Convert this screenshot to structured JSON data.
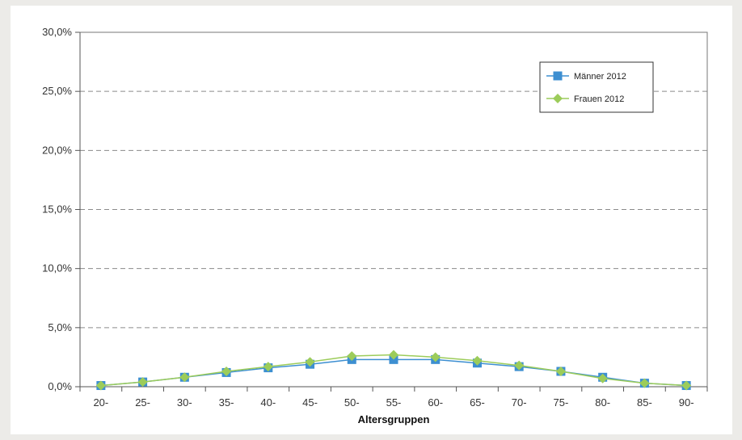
{
  "chart_data": {
    "type": "line",
    "title": "",
    "xlabel": "Altersgruppen",
    "ylabel": "",
    "categories": [
      "20-",
      "25-",
      "30-",
      "35-",
      "40-",
      "45-",
      "50-",
      "55-",
      "60-",
      "65-",
      "70-",
      "75-",
      "80-",
      "85-",
      "90-"
    ],
    "y_ticks": [
      "0,0%",
      "5,0%",
      "10,0%",
      "15,0%",
      "20,0%",
      "25,0%",
      "30,0%"
    ],
    "ylim": [
      0,
      30
    ],
    "grid": "horizontal dashed",
    "legend_position": "top-right",
    "series": [
      {
        "name": "Männer 2012",
        "color": "#3d8fd1",
        "marker": "square",
        "values": [
          0.1,
          0.4,
          0.8,
          1.2,
          1.6,
          1.9,
          2.3,
          2.3,
          2.3,
          2.0,
          1.7,
          1.3,
          0.8,
          0.3,
          0.1
        ]
      },
      {
        "name": "Frauen 2012",
        "color": "#9ccc5a",
        "marker": "diamond",
        "values": [
          0.1,
          0.4,
          0.8,
          1.3,
          1.7,
          2.1,
          2.6,
          2.7,
          2.5,
          2.2,
          1.8,
          1.3,
          0.7,
          0.3,
          0.1
        ]
      }
    ]
  }
}
